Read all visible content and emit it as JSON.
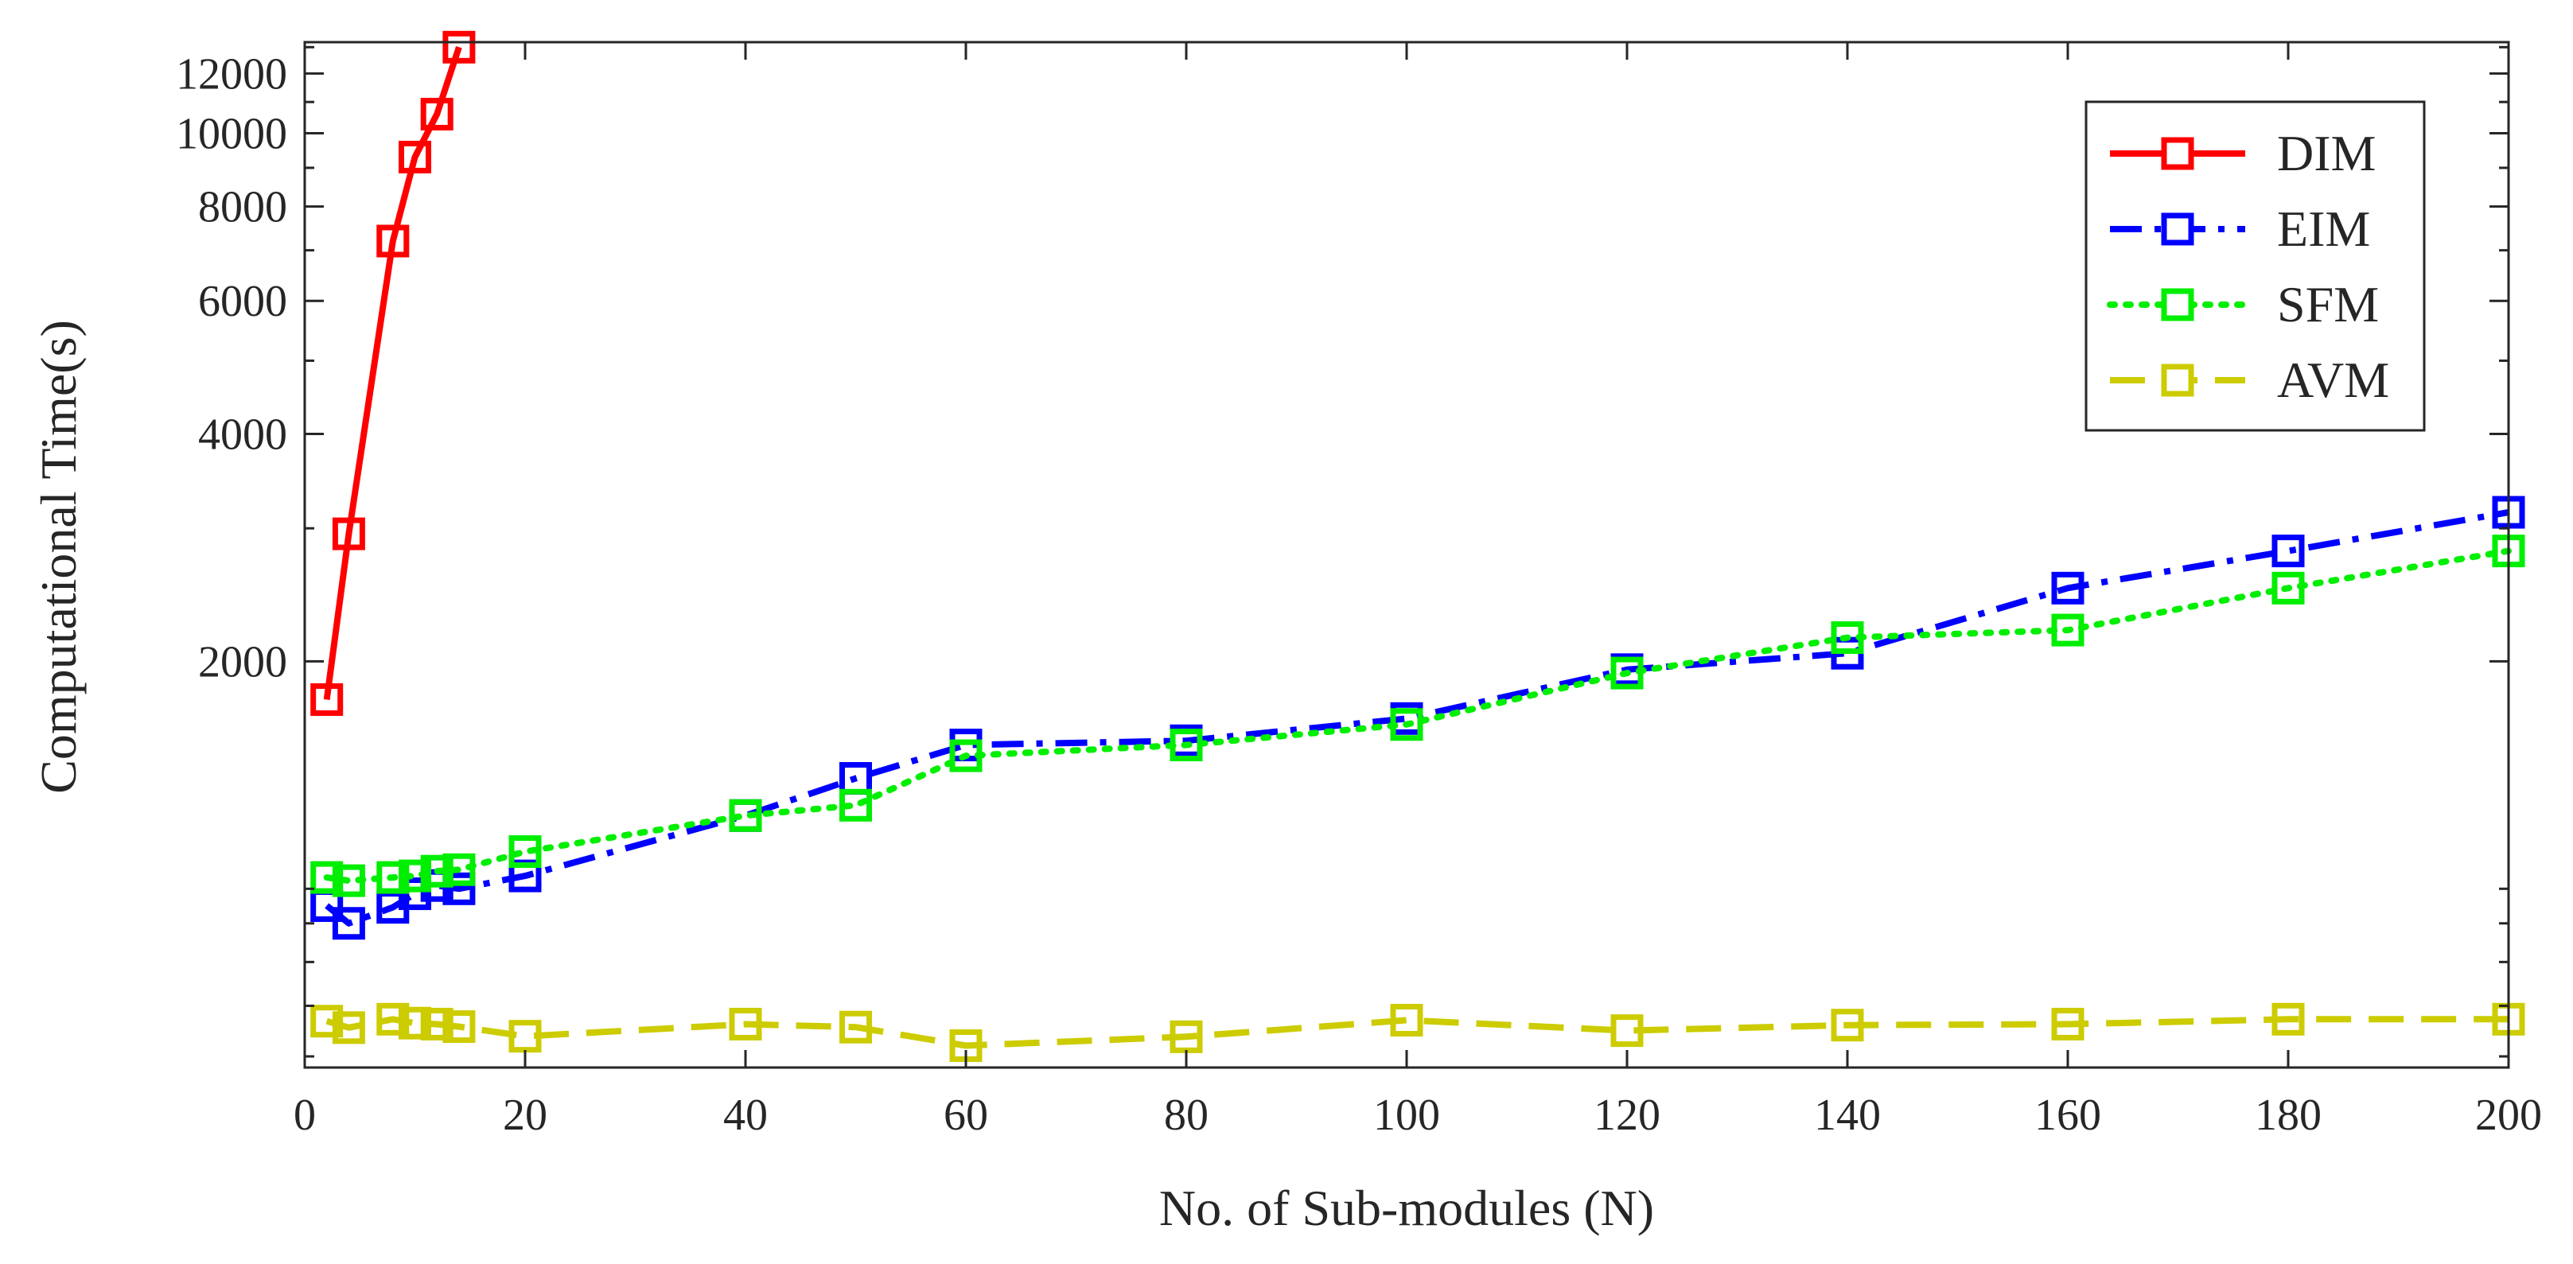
{
  "chart_data": {
    "type": "line",
    "title": "",
    "xlabel": "No. of Sub-modules (N)",
    "ylabel": "Computational Time(s)",
    "xlim": [
      0,
      200
    ],
    "ylim": [
      580,
      13200
    ],
    "yscale": "log",
    "grid": false,
    "legend_position": "top-right",
    "xticks": [
      0,
      20,
      40,
      60,
      80,
      100,
      120,
      140,
      160,
      180,
      200
    ],
    "xtick_labels": [
      "0",
      "20",
      "40",
      "60",
      "80",
      "100",
      "120",
      "140",
      "160",
      "180",
      "200"
    ],
    "yticks": [
      2000,
      4000,
      6000,
      8000,
      10000,
      12000
    ],
    "ytick_labels": [
      "2000",
      "4000",
      "6000",
      "8000",
      "10000",
      "12000"
    ],
    "series": [
      {
        "name": "DIM",
        "color": "#ff0000",
        "dash": "solid",
        "x": [
          2,
          4,
          8,
          10,
          12,
          14
        ],
        "y": [
          1780,
          2950,
          7200,
          9300,
          10600,
          13000
        ]
      },
      {
        "name": "EIM",
        "color": "#0000ff",
        "dash": "dashdot",
        "x": [
          2,
          4,
          8,
          10,
          12,
          14,
          20,
          40,
          50,
          60,
          80,
          100,
          120,
          140,
          160,
          180,
          200
        ],
        "y": [
          950,
          900,
          945,
          985,
          1010,
          1000,
          1040,
          1250,
          1400,
          1550,
          1570,
          1680,
          1950,
          2050,
          2500,
          2800,
          3150
        ]
      },
      {
        "name": "SFM",
        "color": "#00ee00",
        "dash": "dotted",
        "x": [
          2,
          4,
          8,
          10,
          12,
          14,
          20,
          40,
          50,
          60,
          80,
          100,
          120,
          140,
          160,
          180,
          200
        ],
        "y": [
          1035,
          1025,
          1035,
          1040,
          1055,
          1060,
          1120,
          1250,
          1290,
          1500,
          1550,
          1650,
          1930,
          2150,
          2200,
          2500,
          2800
        ]
      },
      {
        "name": "AVM",
        "color": "#cccc00",
        "dash": "dashed",
        "x": [
          2,
          4,
          8,
          10,
          12,
          14,
          20,
          40,
          50,
          60,
          80,
          100,
          120,
          140,
          160,
          180,
          200
        ],
        "y": [
          668,
          655,
          672,
          664,
          662,
          657,
          638,
          662,
          656,
          620,
          637,
          670,
          649,
          660,
          662,
          672,
          672
        ]
      }
    ]
  }
}
